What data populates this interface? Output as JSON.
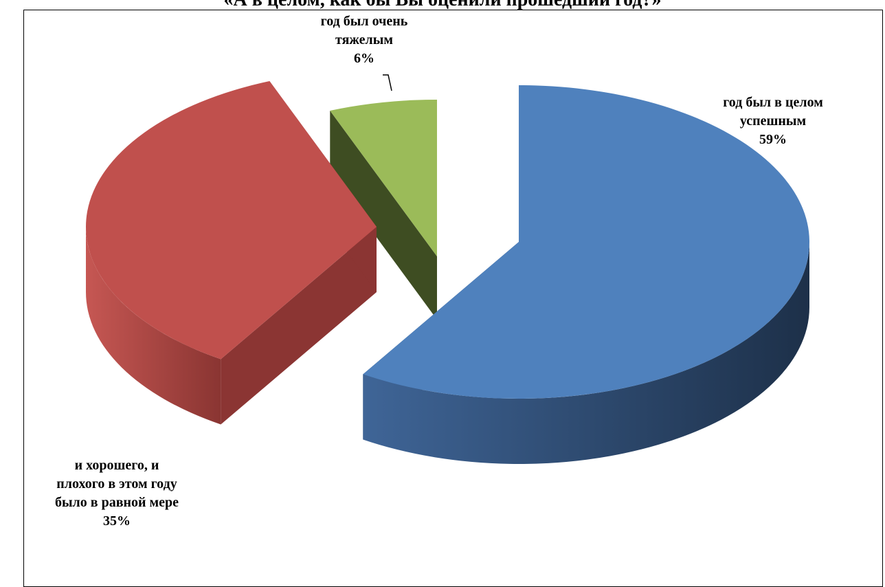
{
  "chart_data": {
    "type": "pie",
    "title": "«А в целом, как бы Вы оценили прошедший год?»",
    "slices": [
      {
        "label_lines": [
          "год был в целом",
          "успешным"
        ],
        "percent_label": "59%",
        "value": 59,
        "color": "#4F81BD",
        "side_color": "#2C4A6E"
      },
      {
        "label_lines": [
          "и хорошего, и",
          "плохого в этом году",
          "было в равной мере"
        ],
        "percent_label": "35%",
        "value": 35,
        "color": "#C0504D",
        "side_color": "#8B3533"
      },
      {
        "label_lines": [
          "год был очень",
          "тяжелым"
        ],
        "percent_label": "6%",
        "value": 6,
        "color": "#9BBB59",
        "side_color": "#3E4D22"
      }
    ],
    "legend": "none",
    "exploded": true,
    "style": "3d"
  }
}
